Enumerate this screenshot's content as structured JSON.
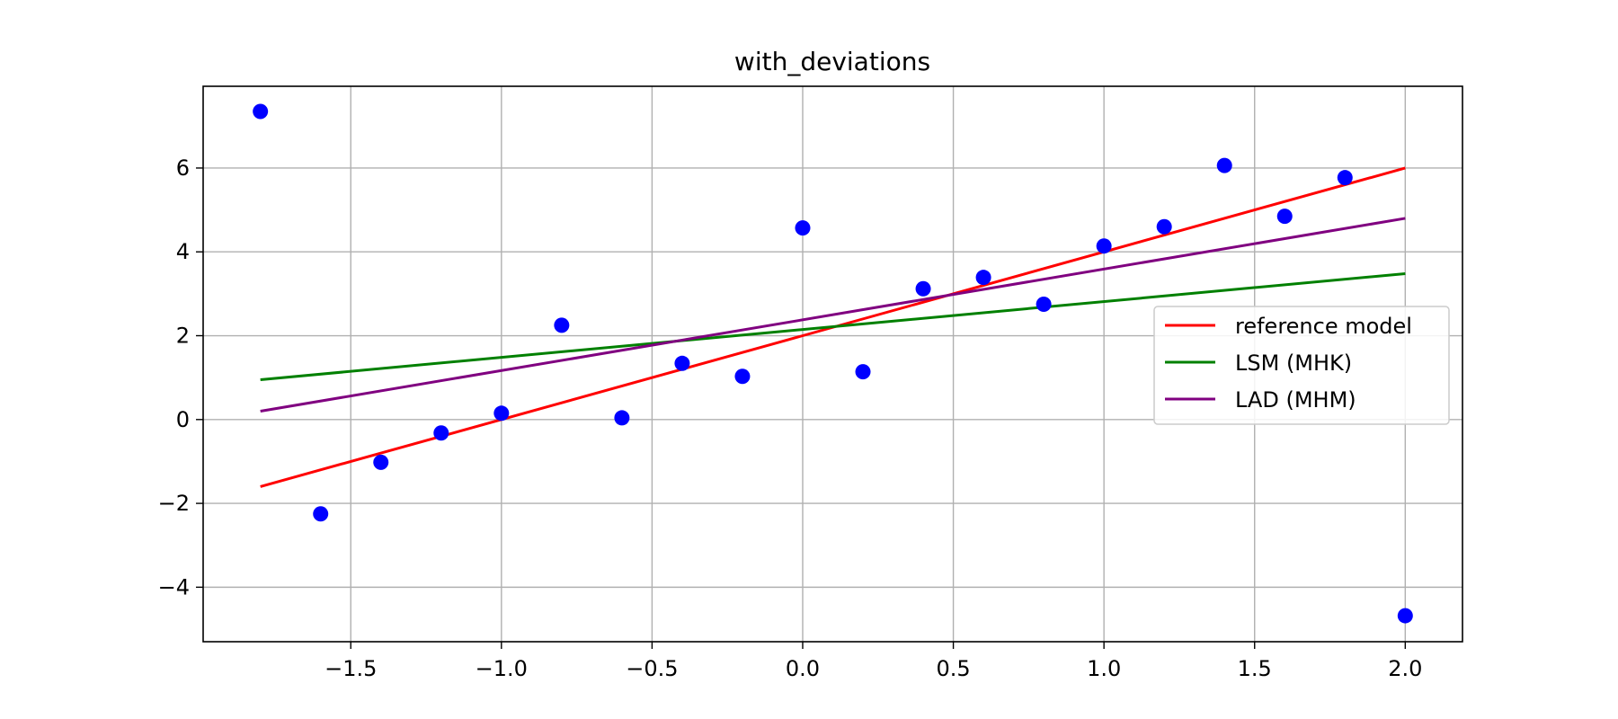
{
  "chart_data": {
    "type": "scatter",
    "title": "with_deviations",
    "xlabel": "",
    "ylabel": "",
    "xlim": [
      -1.99,
      2.19
    ],
    "ylim": [
      -5.3,
      7.95
    ],
    "xticks": [
      -1.5,
      -1.0,
      -0.5,
      0.0,
      0.5,
      1.0,
      1.5,
      2.0
    ],
    "xtick_labels": [
      "−1.5",
      "−1.0",
      "−0.5",
      "0.0",
      "0.5",
      "1.0",
      "1.5",
      "2.0"
    ],
    "yticks": [
      -4,
      -2,
      0,
      2,
      4,
      6
    ],
    "ytick_labels": [
      "−4",
      "−2",
      "0",
      "2",
      "4",
      "6"
    ],
    "grid": true,
    "legend_position": "center-right",
    "points": {
      "name": "data",
      "color": "#0000ff",
      "x": [
        -1.8,
        -1.6,
        -1.4,
        -1.2,
        -1.0,
        -0.8,
        -0.6,
        -0.4,
        -0.2,
        0.0,
        0.2,
        0.4,
        0.6,
        0.8,
        1.0,
        1.2,
        1.4,
        1.6,
        1.8,
        2.0
      ],
      "y": [
        7.35,
        -2.25,
        -1.02,
        -0.32,
        0.15,
        2.25,
        0.04,
        1.34,
        1.03,
        4.57,
        1.14,
        3.12,
        3.39,
        2.75,
        4.14,
        4.6,
        6.06,
        4.85,
        5.77,
        -4.68
      ]
    },
    "series": [
      {
        "name": "reference model",
        "color": "#ff0000",
        "x": [
          -1.8,
          2.0
        ],
        "y": [
          -1.6,
          6.0
        ]
      },
      {
        "name": "LSM (MHK)",
        "color": "#008000",
        "x": [
          -1.8,
          2.0
        ],
        "y": [
          0.95,
          3.48
        ]
      },
      {
        "name": "LAD (MHM)",
        "color": "#800080",
        "x": [
          -1.8,
          2.0
        ],
        "y": [
          0.2,
          4.8
        ]
      }
    ]
  }
}
